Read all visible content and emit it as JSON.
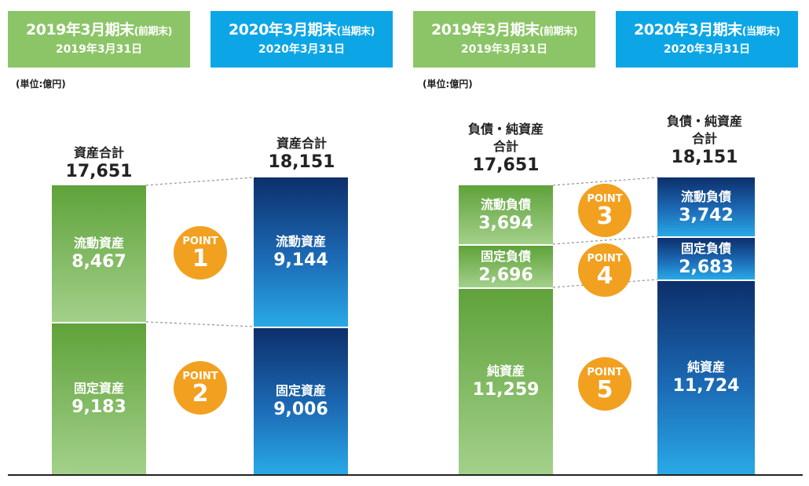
{
  "headers": [
    {
      "main": "2019年3月期末",
      "paren": "(前期末)",
      "date": "2019年3月31日",
      "color": "#8cc567"
    },
    {
      "main": "2020年3月期末",
      "paren": "(当期末)",
      "date": "2020年3月31日",
      "color": "#0ca6e6"
    },
    {
      "main": "2019年3月期末",
      "paren": "(前期末)",
      "date": "2019年3月31日",
      "color": "#8cc567"
    },
    {
      "main": "2020年3月期末",
      "paren": "(当期末)",
      "date": "2020年3月31日",
      "color": "#0ca6e6"
    }
  ],
  "unit": "(単位:億円)",
  "chart_data": [
    {
      "type": "bar",
      "unit": "億円",
      "categories": [
        "2019年3月期末",
        "2020年3月期末"
      ],
      "total_label": "資産合計",
      "totals": [
        17651,
        18151
      ],
      "totals_text": [
        "17,651",
        "18,151"
      ],
      "series": [
        {
          "name": "流動資産",
          "values": [
            8467,
            9144
          ],
          "values_text": [
            "8,467",
            "9,144"
          ],
          "point": "1"
        },
        {
          "name": "固定資産",
          "values": [
            9183,
            9006
          ],
          "values_text": [
            "9,183",
            "9,006"
          ],
          "point": "2"
        }
      ]
    },
    {
      "type": "bar",
      "unit": "億円",
      "categories": [
        "2019年3月期末",
        "2020年3月期末"
      ],
      "total_label_1": "負債・純資産",
      "total_label_2": "合計",
      "totals": [
        17651,
        18151
      ],
      "totals_text": [
        "17,651",
        "18,151"
      ],
      "series": [
        {
          "name": "流動負債",
          "values": [
            3694,
            3742
          ],
          "values_text": [
            "3,694",
            "3,742"
          ],
          "point": "3"
        },
        {
          "name": "固定負債",
          "values": [
            2696,
            2683
          ],
          "values_text": [
            "2,696",
            "2,683"
          ],
          "point": "4"
        },
        {
          "name": "純資産",
          "values": [
            11259,
            11724
          ],
          "values_text": [
            "11,259",
            "11,724"
          ],
          "point": "5"
        }
      ]
    }
  ],
  "point_word": "POINT",
  "colors": {
    "green": "#8cc567",
    "blue": "#0ca6e6",
    "point": "#f2a01f"
  }
}
